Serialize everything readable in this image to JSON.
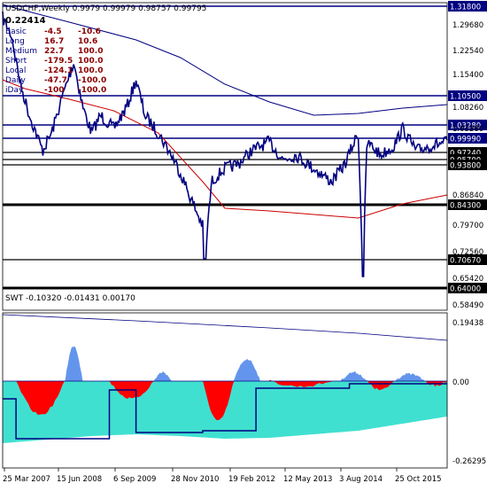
{
  "window": {
    "title": "USDCHF,Weekly  0.9979 0.99979 0.98757 0.99795",
    "value_readout": "0.22414"
  },
  "stats": [
    {
      "label": "Basic",
      "v1": "-4.5",
      "v2": "-10.6"
    },
    {
      "label": "Long",
      "v1": "16.7",
      "v2": "10.6"
    },
    {
      "label": "Medium",
      "v1": "22.7",
      "v2": "100.0"
    },
    {
      "label": "Short",
      "v1": "-179.5",
      "v2": "100.0"
    },
    {
      "label": "Local",
      "v1": "-124.1",
      "v2": "100.0"
    },
    {
      "label": "Daily",
      "v1": "-47.7",
      "v2": "-100.0"
    },
    {
      "label": "iDay",
      "v1": "-100",
      "v2": "-100.0"
    }
  ],
  "price_axis": {
    "ticks": [
      "1.29680",
      "1.22540",
      "1.15400",
      "1.08260",
      "1.03280",
      "0.86840",
      "0.79700",
      "0.72560",
      "0.65420",
      "0.58490"
    ]
  },
  "levels": [
    {
      "label": "1.31800",
      "color": "#000080",
      "style": "blue"
    },
    {
      "label": "1.10500",
      "color": "#000080",
      "style": "blue"
    },
    {
      "label": "1.03280",
      "color": "#000080",
      "style": "blue"
    },
    {
      "label": "0.99990",
      "color": "#000080",
      "style": "blue"
    },
    {
      "label": "0.97240",
      "color": "#000000",
      "style": "black"
    },
    {
      "label": "0.95700",
      "color": "#000000",
      "style": "black"
    },
    {
      "label": "0.93800",
      "color": "#000000",
      "style": "black"
    },
    {
      "label": "0.84300",
      "color": "#000000",
      "style": "black"
    },
    {
      "label": "0.70670",
      "color": "#000000",
      "style": "black"
    },
    {
      "label": "0.64000",
      "color": "#000000",
      "style": "black"
    }
  ],
  "indicator": {
    "title": "SWT -0.10320 -0.01431 0.00170",
    "ticks": [
      "0.19438",
      "0.00",
      "-0.26295"
    ]
  },
  "time_axis": {
    "labels": [
      "25 Mar 2007",
      "15 Jun 2008",
      "6 Sep 2009",
      "28 Nov 2010",
      "19 Feb 2012",
      "12 May 2013",
      "3 Aug 2014",
      "25 Oct 2015"
    ]
  },
  "colors": {
    "price": "#000080",
    "ma_slow": "#000080",
    "ma_red": "#cc0000",
    "hist_red": "#ff0000",
    "hist_blue": "#6495ed",
    "hist_turq": "#40e0d0"
  }
}
